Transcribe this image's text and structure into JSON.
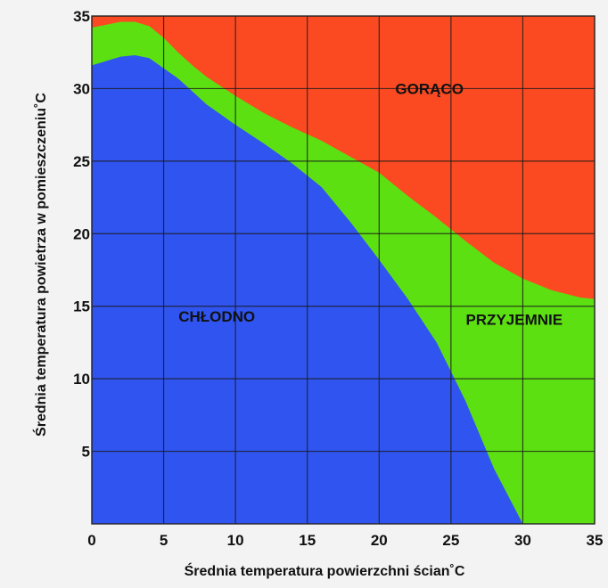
{
  "chart_data": {
    "type": "area",
    "title": "",
    "xlabel": "Średnia temperatura powierzchni ścian˚C",
    "ylabel": "Średnia temperatura powietrza w pomieszczeniu˚C",
    "xlim": [
      0,
      35
    ],
    "ylim": [
      0,
      35
    ],
    "xticks": [
      "0",
      "5",
      "10",
      "15",
      "20",
      "25",
      "30",
      "35"
    ],
    "yticks": [
      "5",
      "10",
      "15",
      "20",
      "25",
      "30",
      "35"
    ],
    "grid": true,
    "colors": {
      "cold": "#2f54ef",
      "comfortable": "#5de012",
      "hot": "#fb4a22",
      "grid": "#1a1a1a"
    },
    "regions": [
      {
        "name": "CHŁODNO",
        "label_at": {
          "x": 8.7,
          "y": 14.3
        },
        "upper_boundary": [
          {
            "x": 0,
            "y": 31.6
          },
          {
            "x": 1,
            "y": 31.9
          },
          {
            "x": 2,
            "y": 32.2
          },
          {
            "x": 3,
            "y": 32.3
          },
          {
            "x": 4,
            "y": 32.1
          },
          {
            "x": 5,
            "y": 31.4
          },
          {
            "x": 6,
            "y": 30.7
          },
          {
            "x": 7,
            "y": 29.8
          },
          {
            "x": 8,
            "y": 28.9
          },
          {
            "x": 10,
            "y": 27.5
          },
          {
            "x": 12,
            "y": 26.2
          },
          {
            "x": 14,
            "y": 24.8
          },
          {
            "x": 16,
            "y": 23.2
          },
          {
            "x": 18,
            "y": 20.8
          },
          {
            "x": 20,
            "y": 18.2
          },
          {
            "x": 22,
            "y": 15.5
          },
          {
            "x": 24,
            "y": 12.5
          },
          {
            "x": 26,
            "y": 8.5
          },
          {
            "x": 28,
            "y": 3.8
          },
          {
            "x": 30,
            "y": 0
          }
        ]
      },
      {
        "name": "PRZYJEMNIE",
        "label_at": {
          "x": 29.4,
          "y": 14.1
        },
        "upper_boundary": [
          {
            "x": 0,
            "y": 34.2
          },
          {
            "x": 1,
            "y": 34.4
          },
          {
            "x": 2,
            "y": 34.6
          },
          {
            "x": 3,
            "y": 34.6
          },
          {
            "x": 4,
            "y": 34.3
          },
          {
            "x": 5,
            "y": 33.5
          },
          {
            "x": 6,
            "y": 32.5
          },
          {
            "x": 7,
            "y": 31.6
          },
          {
            "x": 8,
            "y": 30.8
          },
          {
            "x": 10,
            "y": 29.5
          },
          {
            "x": 12,
            "y": 28.3
          },
          {
            "x": 14,
            "y": 27.3
          },
          {
            "x": 16,
            "y": 26.4
          },
          {
            "x": 18,
            "y": 25.3
          },
          {
            "x": 20,
            "y": 24.2
          },
          {
            "x": 22,
            "y": 22.6
          },
          {
            "x": 24,
            "y": 21.1
          },
          {
            "x": 26,
            "y": 19.5
          },
          {
            "x": 28,
            "y": 18.0
          },
          {
            "x": 30,
            "y": 16.9
          },
          {
            "x": 32,
            "y": 16.1
          },
          {
            "x": 34,
            "y": 15.6
          },
          {
            "x": 35,
            "y": 15.5
          }
        ]
      },
      {
        "name": "GORĄCO",
        "label_at": {
          "x": 23.5,
          "y": 30.0
        },
        "upper_boundary": [
          {
            "x": 0,
            "y": 35
          },
          {
            "x": 35,
            "y": 35
          }
        ]
      }
    ]
  }
}
